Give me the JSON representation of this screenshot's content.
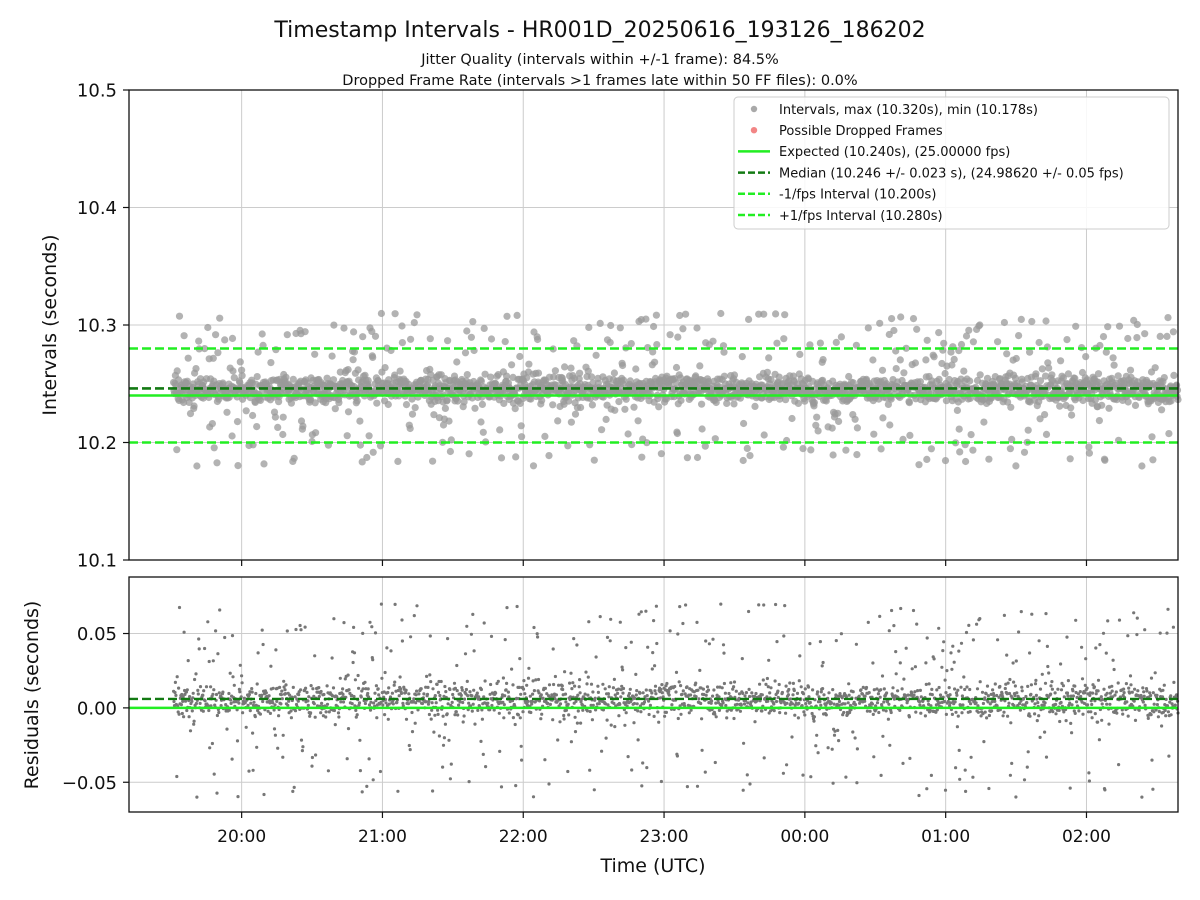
{
  "title": "Timestamp Intervals - HR001D_20250616_193126_186202",
  "subtitle_1": "Jitter Quality (intervals within +/-1 frame): 84.5%",
  "subtitle_2": "Dropped Frame Rate (intervals >1 frames late within 50 FF files): 0.0%",
  "colors": {
    "points_top": "#9a9a9a",
    "points_bottom": "#777777",
    "expected": "#22ee22",
    "median": "#137a13",
    "interval_lines": "#22ee22",
    "dropped": "#f07070",
    "grid": "#cccccc"
  },
  "chart_data": [
    {
      "type": "scatter",
      "panel": "intervals",
      "ylabel": "Intervals (seconds)",
      "xlabel": "",
      "ylim": [
        10.1,
        10.5
      ],
      "yticks": [
        10.1,
        10.2,
        10.3,
        10.4,
        10.5
      ],
      "ytick_labels": [
        "10.1",
        "10.2",
        "10.3",
        "10.4",
        "10.5"
      ],
      "xlim": [
        "19:12",
        "02:39"
      ],
      "xticks": [
        "20:00",
        "21:00",
        "22:00",
        "23:00",
        "00:00",
        "01:00",
        "02:00"
      ],
      "x_start": "19:31",
      "x_end": "02:39",
      "grid": true,
      "legend_position": "top-right",
      "max_interval": 10.32,
      "min_interval": 10.178,
      "expected": 10.24,
      "median": 10.246,
      "minus_fps_interval": 10.2,
      "plus_fps_interval": 10.28,
      "dropped_frames": [],
      "legend": [
        {
          "marker": "dot",
          "color": "#9a9a9a",
          "label": "Intervals, max (10.320s), min (10.178s)"
        },
        {
          "marker": "dot",
          "color": "#f07070",
          "label": "Possible Dropped Frames"
        },
        {
          "marker": "solid",
          "color": "#22ee22",
          "label": "Expected (10.240s), (25.00000 fps)"
        },
        {
          "marker": "dashed",
          "color": "#137a13",
          "label": "Median (10.246 +/- 0.023 s), (24.98620 +/- 0.05 fps)"
        },
        {
          "marker": "dashed",
          "color": "#22ee22",
          "label": "-1/fps Interval (10.200s)"
        },
        {
          "marker": "dashed",
          "color": "#22ee22",
          "label": "+1/fps Interval (10.280s)"
        }
      ]
    },
    {
      "type": "scatter",
      "panel": "residuals",
      "ylabel": "Residuals (seconds)",
      "xlabel": "Time (UTC)",
      "ylim": [
        -0.07,
        0.088
      ],
      "yticks": [
        -0.05,
        0.0,
        0.05
      ],
      "ytick_labels": [
        "−0.05",
        "0.00",
        "0.05"
      ],
      "xlim": [
        "19:12",
        "02:39"
      ],
      "xticks": [
        "20:00",
        "21:00",
        "22:00",
        "23:00",
        "00:00",
        "01:00",
        "02:00"
      ],
      "grid": true,
      "zero_line": 0.0,
      "median_residual": 0.006
    }
  ]
}
